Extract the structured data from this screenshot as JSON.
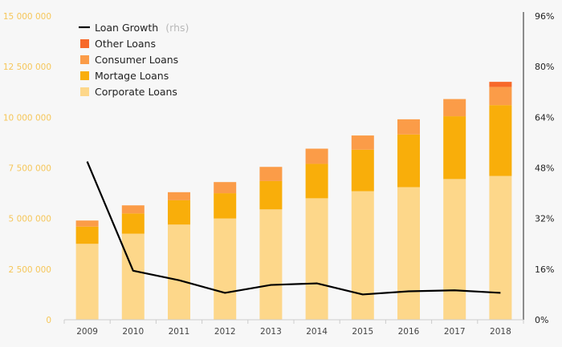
{
  "chart_data": {
    "type": "bar",
    "stacked": true,
    "categories": [
      "2009",
      "2010",
      "2011",
      "2012",
      "2013",
      "2014",
      "2015",
      "2016",
      "2017",
      "2018"
    ],
    "series": [
      {
        "name": "Corporate Loans",
        "color": "#fdd78a",
        "values": [
          3750000,
          4250000,
          4700000,
          5000000,
          5450000,
          6000000,
          6350000,
          6550000,
          6950000,
          7100000
        ]
      },
      {
        "name": "Mortage Loans",
        "color": "#f9ae0a",
        "values": [
          850000,
          1000000,
          1200000,
          1250000,
          1400000,
          1700000,
          2050000,
          2600000,
          3100000,
          3500000
        ]
      },
      {
        "name": "Consumer Loans",
        "color": "#fb9c48",
        "values": [
          300000,
          400000,
          400000,
          550000,
          700000,
          750000,
          700000,
          750000,
          850000,
          900000
        ]
      },
      {
        "name": "Other Loans",
        "color": "#f7692a",
        "values": [
          0,
          0,
          0,
          0,
          0,
          0,
          0,
          0,
          0,
          250000
        ]
      }
    ],
    "line_series": {
      "name": "Loan Growth",
      "note": "(rhs)",
      "color": "#000000",
      "axis": "right",
      "values": [
        0.5,
        0.155,
        0.125,
        0.085,
        0.11,
        0.115,
        0.08,
        0.09,
        0.093,
        0.085
      ]
    },
    "y_left": {
      "ticks": [
        0,
        2500000,
        5000000,
        7500000,
        10000000,
        12500000,
        15000000
      ],
      "tick_labels": [
        "0",
        "2 500 000",
        "5 000 000",
        "7 500 000",
        "10 000 000",
        "12 500 000",
        "15 000 000"
      ],
      "ylim": [
        0,
        15000000
      ],
      "label_color": "#f6c659"
    },
    "y_right": {
      "ticks": [
        0,
        0.16,
        0.32,
        0.48,
        0.64,
        0.8,
        0.96
      ],
      "tick_labels": [
        "0%",
        "16%",
        "32%",
        "48%",
        "64%",
        "80%",
        "96%"
      ],
      "ylim": [
        0,
        0.96
      ]
    },
    "legend": {
      "placement": "top-left",
      "order": [
        "Loan Growth",
        "Other Loans",
        "Consumer Loans",
        "Mortage Loans",
        "Corporate Loans"
      ]
    },
    "grid": false
  }
}
